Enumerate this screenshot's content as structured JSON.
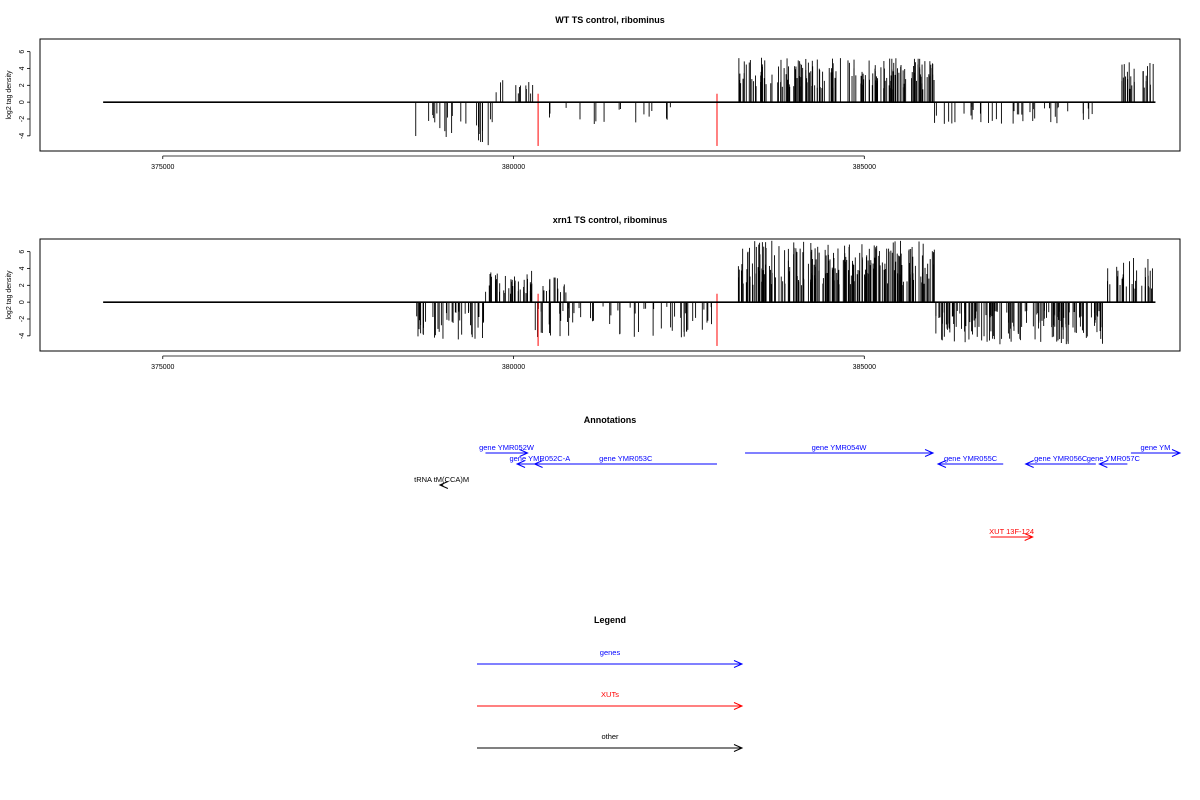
{
  "colors": {
    "gene": "#0000ff",
    "xut": "#ff0000",
    "other": "#000000",
    "signal": "#000000",
    "marker": "#ff0000"
  },
  "chart_data": [
    {
      "type": "bar",
      "title": "WT TS control, ribominus",
      "ylabel": "log2 tag density",
      "xlim": [
        373250,
        389500
      ],
      "ylim": [
        -5.8,
        7.5
      ],
      "xticks": [
        375000,
        380000,
        385000
      ],
      "yticks": [
        -4,
        -2,
        0,
        2,
        4,
        6
      ],
      "baseline_x": [
        374150,
        389150
      ],
      "marker_x": [
        380350,
        382900
      ],
      "signal_regions": [
        {
          "x": [
            378600,
            379700
          ],
          "y": [
            -5.2,
            -1.0
          ],
          "n": 24
        },
        {
          "x": [
            379700,
            380300
          ],
          "y": [
            1.0,
            3.0
          ],
          "n": 12
        },
        {
          "x": [
            380500,
            382600
          ],
          "y": [
            -3.2,
            -0.6
          ],
          "n": 16
        },
        {
          "x": [
            383200,
            386000
          ],
          "y": [
            1.5,
            5.3
          ],
          "n": 170
        },
        {
          "x": [
            386000,
            388400
          ],
          "y": [
            -2.6,
            -0.5
          ],
          "n": 40
        },
        {
          "x": [
            388650,
            389150
          ],
          "y": [
            1.5,
            4.8
          ],
          "n": 22
        }
      ]
    },
    {
      "type": "bar",
      "title": "xrn1 TS control, ribominus",
      "ylabel": "log2 tag density",
      "xlim": [
        373250,
        389500
      ],
      "ylim": [
        -5.8,
        7.5
      ],
      "xticks": [
        375000,
        380000,
        385000
      ],
      "yticks": [
        -4,
        -2,
        0,
        2,
        4,
        6
      ],
      "baseline_x": [
        374150,
        389150
      ],
      "marker_x": [
        380350,
        382900
      ],
      "signal_regions": [
        {
          "x": [
            378600,
            379600
          ],
          "y": [
            -4.5,
            -1.0
          ],
          "n": 40
        },
        {
          "x": [
            379600,
            380300
          ],
          "y": [
            1.0,
            3.8
          ],
          "n": 40
        },
        {
          "x": [
            380400,
            380800
          ],
          "y": [
            1.0,
            3.0
          ],
          "n": 14
        },
        {
          "x": [
            380300,
            382900
          ],
          "y": [
            -4.2,
            -0.5
          ],
          "n": 60
        },
        {
          "x": [
            383200,
            386000
          ],
          "y": [
            2.0,
            7.3
          ],
          "n": 230
        },
        {
          "x": [
            386000,
            388400
          ],
          "y": [
            -5.0,
            -1.0
          ],
          "n": 150
        },
        {
          "x": [
            388400,
            389150
          ],
          "y": [
            1.5,
            5.5
          ],
          "n": 30
        }
      ]
    }
  ],
  "annotations": {
    "title": "Annotations",
    "features": [
      {
        "label": "gene YMR052W",
        "kind": "gene",
        "start": 379600,
        "end": 380200,
        "strand": "+",
        "row": 0
      },
      {
        "label": "gene YMR052C-A",
        "kind": "gene",
        "start": 380050,
        "end": 380700,
        "strand": "-",
        "row": 1
      },
      {
        "label": "gene YMR053C",
        "kind": "gene",
        "start": 380300,
        "end": 382900,
        "strand": "-",
        "row": 1
      },
      {
        "label": "gene YMR054W",
        "kind": "gene",
        "start": 383300,
        "end": 385980,
        "strand": "+",
        "row": 0
      },
      {
        "label": "gene YMR055C",
        "kind": "gene",
        "start": 386050,
        "end": 386980,
        "strand": "-",
        "row": 1
      },
      {
        "label": "gene YMR056C",
        "kind": "gene",
        "start": 387300,
        "end": 388300,
        "strand": "-",
        "row": 1
      },
      {
        "label": "gene YMR057C",
        "kind": "gene",
        "start": 388350,
        "end": 388750,
        "strand": "-",
        "row": 1
      },
      {
        "label": "gene YM",
        "kind": "gene",
        "start": 388800,
        "end": 389500,
        "strand": "+",
        "row": 0
      },
      {
        "label": "tRNA tM(CCA)M",
        "kind": "other",
        "start": 378950,
        "end": 379000,
        "strand": "-",
        "row": 2
      },
      {
        "label": "XUT 13F-124",
        "kind": "xut",
        "start": 386800,
        "end": 387400,
        "strand": "+",
        "row": 3
      }
    ]
  },
  "legend": {
    "title": "Legend",
    "entries": [
      {
        "label": "genes",
        "kind": "gene"
      },
      {
        "label": "XUTs",
        "kind": "xut"
      },
      {
        "label": "other",
        "kind": "other"
      }
    ]
  }
}
